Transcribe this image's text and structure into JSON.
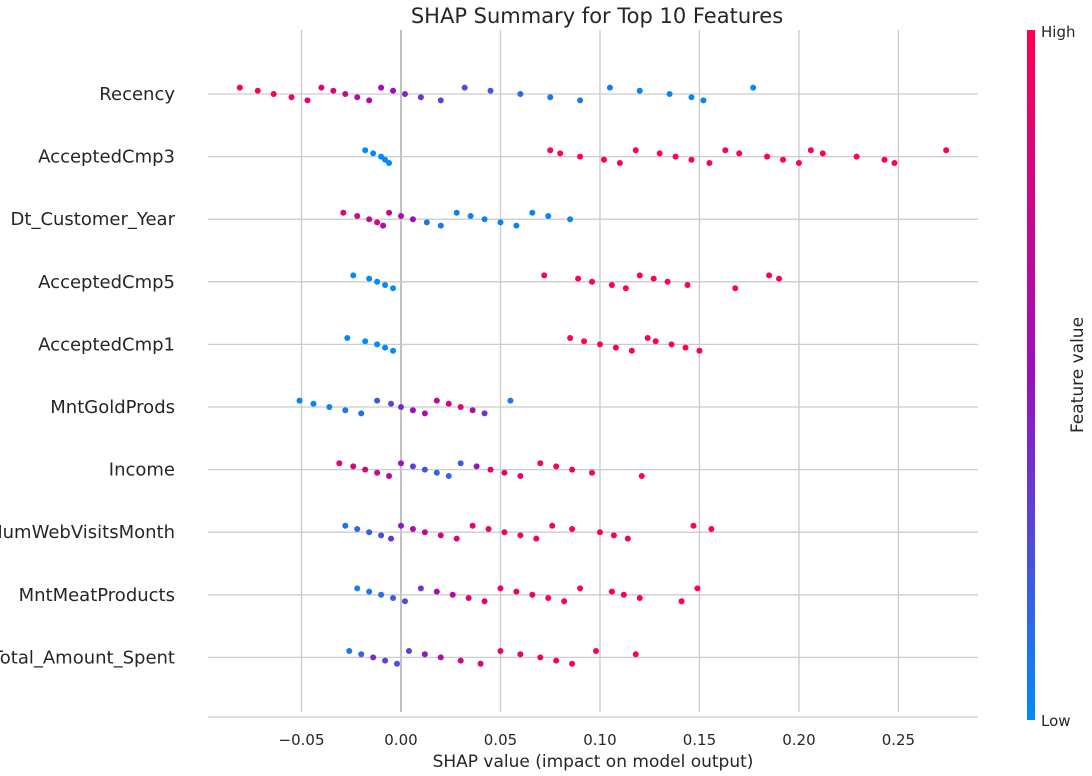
{
  "chart_data": {
    "type": "scatter",
    "subtype": "shap-beeswarm",
    "title": "SHAP Summary for Top 10 Features",
    "xlabel": "SHAP value (impact on model output)",
    "xlim": [
      -0.097,
      0.29
    ],
    "xticks": [
      -0.05,
      0.0,
      0.05,
      0.1,
      0.15,
      0.2,
      0.25
    ],
    "xtick_labels": [
      "−0.05",
      "0.00",
      "0.05",
      "0.10",
      "0.15",
      "0.20",
      "0.25"
    ],
    "grid": true,
    "colorbar": {
      "label": "Feature value",
      "high_label": "High",
      "low_label": "Low",
      "high_color": "#ff0052",
      "mid_color": "#9b0fbf",
      "low_color": "#008bfb"
    },
    "features": [
      {
        "name": "Recency",
        "points": [
          {
            "x": -0.081,
            "v": 0.95
          },
          {
            "x": -0.072,
            "v": 0.95
          },
          {
            "x": -0.064,
            "v": 0.92
          },
          {
            "x": -0.055,
            "v": 0.9
          },
          {
            "x": -0.047,
            "v": 0.85
          },
          {
            "x": -0.04,
            "v": 0.82
          },
          {
            "x": -0.034,
            "v": 0.78
          },
          {
            "x": -0.028,
            "v": 0.72
          },
          {
            "x": -0.022,
            "v": 0.65
          },
          {
            "x": -0.016,
            "v": 0.6
          },
          {
            "x": -0.01,
            "v": 0.55
          },
          {
            "x": -0.004,
            "v": 0.5
          },
          {
            "x": 0.002,
            "v": 0.42
          },
          {
            "x": 0.01,
            "v": 0.35
          },
          {
            "x": 0.02,
            "v": 0.3
          },
          {
            "x": 0.032,
            "v": 0.25
          },
          {
            "x": 0.045,
            "v": 0.2
          },
          {
            "x": 0.06,
            "v": 0.15
          },
          {
            "x": 0.075,
            "v": 0.1
          },
          {
            "x": 0.09,
            "v": 0.08
          },
          {
            "x": 0.105,
            "v": 0.06
          },
          {
            "x": 0.12,
            "v": 0.04
          },
          {
            "x": 0.135,
            "v": 0.03
          },
          {
            "x": 0.146,
            "v": 0.02
          },
          {
            "x": 0.152,
            "v": 0.02
          },
          {
            "x": 0.177,
            "v": 0.0
          }
        ]
      },
      {
        "name": "AcceptedCmp3",
        "points": [
          {
            "x": -0.018,
            "v": 0.0
          },
          {
            "x": -0.014,
            "v": 0.0
          },
          {
            "x": -0.01,
            "v": 0.0
          },
          {
            "x": -0.008,
            "v": 0.0
          },
          {
            "x": -0.006,
            "v": 0.0
          },
          {
            "x": 0.075,
            "v": 1.0
          },
          {
            "x": 0.08,
            "v": 1.0
          },
          {
            "x": 0.09,
            "v": 1.0
          },
          {
            "x": 0.102,
            "v": 1.0
          },
          {
            "x": 0.11,
            "v": 1.0
          },
          {
            "x": 0.118,
            "v": 1.0
          },
          {
            "x": 0.13,
            "v": 1.0
          },
          {
            "x": 0.138,
            "v": 1.0
          },
          {
            "x": 0.146,
            "v": 1.0
          },
          {
            "x": 0.155,
            "v": 1.0
          },
          {
            "x": 0.163,
            "v": 1.0
          },
          {
            "x": 0.17,
            "v": 1.0
          },
          {
            "x": 0.184,
            "v": 1.0
          },
          {
            "x": 0.192,
            "v": 1.0
          },
          {
            "x": 0.2,
            "v": 1.0
          },
          {
            "x": 0.206,
            "v": 1.0
          },
          {
            "x": 0.212,
            "v": 1.0
          },
          {
            "x": 0.229,
            "v": 1.0
          },
          {
            "x": 0.243,
            "v": 1.0
          },
          {
            "x": 0.248,
            "v": 1.0
          },
          {
            "x": 0.274,
            "v": 1.0
          }
        ]
      },
      {
        "name": "Dt_Customer_Year",
        "points": [
          {
            "x": -0.029,
            "v": 0.85
          },
          {
            "x": -0.022,
            "v": 0.75
          },
          {
            "x": -0.016,
            "v": 0.7
          },
          {
            "x": -0.012,
            "v": 0.8
          },
          {
            "x": -0.009,
            "v": 0.6
          },
          {
            "x": -0.006,
            "v": 0.7
          },
          {
            "x": 0.0,
            "v": 0.55
          },
          {
            "x": 0.006,
            "v": 0.5
          },
          {
            "x": 0.013,
            "v": 0.1
          },
          {
            "x": 0.02,
            "v": 0.08
          },
          {
            "x": 0.028,
            "v": 0.06
          },
          {
            "x": 0.035,
            "v": 0.05
          },
          {
            "x": 0.042,
            "v": 0.05
          },
          {
            "x": 0.05,
            "v": 0.04
          },
          {
            "x": 0.058,
            "v": 0.03
          },
          {
            "x": 0.066,
            "v": 0.02
          },
          {
            "x": 0.074,
            "v": 0.02
          },
          {
            "x": 0.085,
            "v": 0.01
          }
        ]
      },
      {
        "name": "AcceptedCmp5",
        "points": [
          {
            "x": -0.024,
            "v": 0.0
          },
          {
            "x": -0.016,
            "v": 0.0
          },
          {
            "x": -0.012,
            "v": 0.0
          },
          {
            "x": -0.008,
            "v": 0.0
          },
          {
            "x": -0.004,
            "v": 0.0
          },
          {
            "x": 0.072,
            "v": 1.0
          },
          {
            "x": 0.089,
            "v": 1.0
          },
          {
            "x": 0.096,
            "v": 1.0
          },
          {
            "x": 0.106,
            "v": 1.0
          },
          {
            "x": 0.113,
            "v": 1.0
          },
          {
            "x": 0.12,
            "v": 1.0
          },
          {
            "x": 0.127,
            "v": 1.0
          },
          {
            "x": 0.134,
            "v": 1.0
          },
          {
            "x": 0.144,
            "v": 1.0
          },
          {
            "x": 0.168,
            "v": 1.0
          },
          {
            "x": 0.185,
            "v": 1.0
          },
          {
            "x": 0.19,
            "v": 1.0
          }
        ]
      },
      {
        "name": "AcceptedCmp1",
        "points": [
          {
            "x": -0.027,
            "v": 0.0
          },
          {
            "x": -0.018,
            "v": 0.0
          },
          {
            "x": -0.012,
            "v": 0.0
          },
          {
            "x": -0.008,
            "v": 0.0
          },
          {
            "x": -0.004,
            "v": 0.0
          },
          {
            "x": 0.085,
            "v": 1.0
          },
          {
            "x": 0.092,
            "v": 1.0
          },
          {
            "x": 0.1,
            "v": 1.0
          },
          {
            "x": 0.108,
            "v": 1.0
          },
          {
            "x": 0.116,
            "v": 1.0
          },
          {
            "x": 0.124,
            "v": 1.0
          },
          {
            "x": 0.128,
            "v": 1.0
          },
          {
            "x": 0.136,
            "v": 1.0
          },
          {
            "x": 0.143,
            "v": 1.0
          },
          {
            "x": 0.15,
            "v": 1.0
          }
        ]
      },
      {
        "name": "MntGoldProds",
        "points": [
          {
            "x": -0.051,
            "v": 0.02
          },
          {
            "x": -0.044,
            "v": 0.03
          },
          {
            "x": -0.036,
            "v": 0.05
          },
          {
            "x": -0.028,
            "v": 0.08
          },
          {
            "x": -0.02,
            "v": 0.12
          },
          {
            "x": -0.012,
            "v": 0.2
          },
          {
            "x": -0.005,
            "v": 0.3
          },
          {
            "x": 0.0,
            "v": 0.4
          },
          {
            "x": 0.006,
            "v": 0.5
          },
          {
            "x": 0.012,
            "v": 0.6
          },
          {
            "x": 0.018,
            "v": 0.7
          },
          {
            "x": 0.024,
            "v": 0.8
          },
          {
            "x": 0.03,
            "v": 0.85
          },
          {
            "x": 0.036,
            "v": 0.6
          },
          {
            "x": 0.042,
            "v": 0.35
          },
          {
            "x": 0.055,
            "v": 0.05
          }
        ]
      },
      {
        "name": "Income",
        "points": [
          {
            "x": -0.031,
            "v": 0.85
          },
          {
            "x": -0.024,
            "v": 0.8
          },
          {
            "x": -0.018,
            "v": 0.8
          },
          {
            "x": -0.012,
            "v": 0.75
          },
          {
            "x": -0.006,
            "v": 0.65
          },
          {
            "x": 0.0,
            "v": 0.5
          },
          {
            "x": 0.006,
            "v": 0.3
          },
          {
            "x": 0.012,
            "v": 0.2
          },
          {
            "x": 0.018,
            "v": 0.15
          },
          {
            "x": 0.024,
            "v": 0.15
          },
          {
            "x": 0.03,
            "v": 0.2
          },
          {
            "x": 0.038,
            "v": 0.5
          },
          {
            "x": 0.045,
            "v": 0.85
          },
          {
            "x": 0.052,
            "v": 0.9
          },
          {
            "x": 0.06,
            "v": 0.9
          },
          {
            "x": 0.07,
            "v": 0.95
          },
          {
            "x": 0.078,
            "v": 0.95
          },
          {
            "x": 0.086,
            "v": 0.95
          },
          {
            "x": 0.096,
            "v": 0.95
          },
          {
            "x": 0.121,
            "v": 1.0
          }
        ]
      },
      {
        "name": "NumWebVisitsMonth",
        "points": [
          {
            "x": -0.028,
            "v": 0.1
          },
          {
            "x": -0.022,
            "v": 0.15
          },
          {
            "x": -0.016,
            "v": 0.2
          },
          {
            "x": -0.01,
            "v": 0.25
          },
          {
            "x": -0.005,
            "v": 0.35
          },
          {
            "x": 0.0,
            "v": 0.45
          },
          {
            "x": 0.006,
            "v": 0.6
          },
          {
            "x": 0.012,
            "v": 0.7
          },
          {
            "x": 0.02,
            "v": 0.8
          },
          {
            "x": 0.028,
            "v": 0.85
          },
          {
            "x": 0.036,
            "v": 0.9
          },
          {
            "x": 0.044,
            "v": 0.9
          },
          {
            "x": 0.052,
            "v": 0.92
          },
          {
            "x": 0.06,
            "v": 0.92
          },
          {
            "x": 0.068,
            "v": 0.95
          },
          {
            "x": 0.076,
            "v": 0.95
          },
          {
            "x": 0.086,
            "v": 0.95
          },
          {
            "x": 0.1,
            "v": 0.95
          },
          {
            "x": 0.107,
            "v": 0.95
          },
          {
            "x": 0.114,
            "v": 0.95
          },
          {
            "x": 0.147,
            "v": 1.0
          },
          {
            "x": 0.156,
            "v": 1.0
          }
        ]
      },
      {
        "name": "MntMeatProducts",
        "points": [
          {
            "x": -0.022,
            "v": 0.05
          },
          {
            "x": -0.016,
            "v": 0.08
          },
          {
            "x": -0.01,
            "v": 0.12
          },
          {
            "x": -0.004,
            "v": 0.18
          },
          {
            "x": 0.002,
            "v": 0.25
          },
          {
            "x": 0.01,
            "v": 0.35
          },
          {
            "x": 0.018,
            "v": 0.55
          },
          {
            "x": 0.026,
            "v": 0.7
          },
          {
            "x": 0.034,
            "v": 0.8
          },
          {
            "x": 0.042,
            "v": 0.85
          },
          {
            "x": 0.05,
            "v": 0.88
          },
          {
            "x": 0.058,
            "v": 0.9
          },
          {
            "x": 0.066,
            "v": 0.92
          },
          {
            "x": 0.074,
            "v": 0.95
          },
          {
            "x": 0.082,
            "v": 0.95
          },
          {
            "x": 0.09,
            "v": 0.95
          },
          {
            "x": 0.106,
            "v": 0.95
          },
          {
            "x": 0.112,
            "v": 0.95
          },
          {
            "x": 0.12,
            "v": 0.95
          },
          {
            "x": 0.141,
            "v": 1.0
          },
          {
            "x": 0.149,
            "v": 1.0
          }
        ]
      },
      {
        "name": "Total_Amount_Spent",
        "points": [
          {
            "x": -0.026,
            "v": 0.08
          },
          {
            "x": -0.02,
            "v": 0.15
          },
          {
            "x": -0.014,
            "v": 0.4
          },
          {
            "x": -0.008,
            "v": 0.3
          },
          {
            "x": -0.002,
            "v": 0.25
          },
          {
            "x": 0.004,
            "v": 0.3
          },
          {
            "x": 0.012,
            "v": 0.45
          },
          {
            "x": 0.02,
            "v": 0.6
          },
          {
            "x": 0.03,
            "v": 0.75
          },
          {
            "x": 0.04,
            "v": 0.85
          },
          {
            "x": 0.05,
            "v": 0.9
          },
          {
            "x": 0.06,
            "v": 0.9
          },
          {
            "x": 0.07,
            "v": 0.92
          },
          {
            "x": 0.078,
            "v": 0.95
          },
          {
            "x": 0.086,
            "v": 0.95
          },
          {
            "x": 0.098,
            "v": 0.95
          },
          {
            "x": 0.118,
            "v": 1.0
          }
        ]
      }
    ]
  }
}
